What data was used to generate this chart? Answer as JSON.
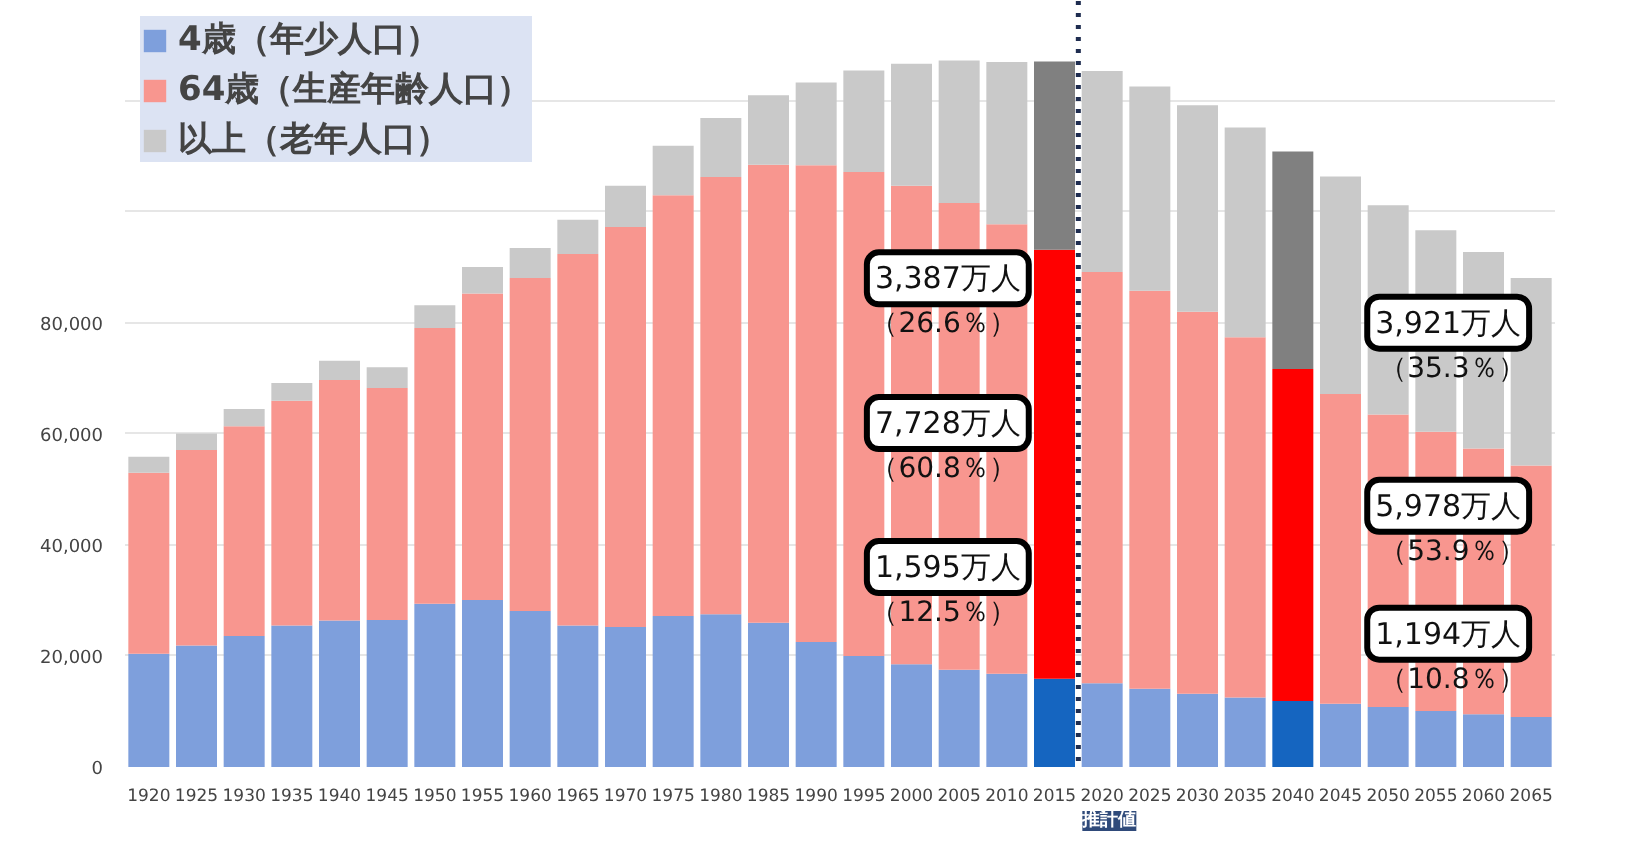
{
  "chart_data": {
    "type": "bar",
    "stacked": true,
    "x": [
      1920,
      1925,
      1930,
      1935,
      1940,
      1945,
      1950,
      1955,
      1960,
      1965,
      1970,
      1975,
      1980,
      1985,
      1990,
      1995,
      2000,
      2005,
      2010,
      2015,
      2020,
      2025,
      2030,
      2035,
      2040,
      2045,
      2050,
      2055,
      2060,
      2065
    ],
    "series": [
      {
        "name": "4歳（年少人口）",
        "colors": [
          "#7e9fdc",
          "#7e9fdc",
          "#7e9fdc",
          "#7e9fdc",
          "#7e9fdc",
          "#7e9fdc",
          "#7e9fdc",
          "#7e9fdc",
          "#7e9fdc",
          "#7e9fdc",
          "#7e9fdc",
          "#7e9fdc",
          "#7e9fdc",
          "#7e9fdc",
          "#7e9fdc",
          "#7e9fdc",
          "#7e9fdc",
          "#7e9fdc",
          "#7e9fdc",
          "#1565c0",
          "#7e9fdc",
          "#7e9fdc",
          "#7e9fdc",
          "#7e9fdc",
          "#1565c0",
          "#7e9fdc",
          "#7e9fdc",
          "#7e9fdc",
          "#7e9fdc",
          "#7e9fdc"
        ],
        "values": [
          20400,
          21900,
          23600,
          25500,
          26400,
          26500,
          29400,
          30100,
          28100,
          25500,
          25200,
          27200,
          27500,
          26000,
          22500,
          20000,
          18500,
          17500,
          16800,
          15900,
          15100,
          14100,
          13200,
          12500,
          11900,
          11400,
          10800,
          10100,
          9500,
          9000
        ]
      },
      {
        "name": "64歳（生産年齢人口）",
        "colors": [
          "#f8968f",
          "#f8968f",
          "#f8968f",
          "#f8968f",
          "#f8968f",
          "#f8968f",
          "#f8968f",
          "#f8968f",
          "#f8968f",
          "#f8968f",
          "#f8968f",
          "#f8968f",
          "#f8968f",
          "#f8968f",
          "#f8968f",
          "#f8968f",
          "#f8968f",
          "#f8968f",
          "#f8968f",
          "#ff0000",
          "#f8968f",
          "#f8968f",
          "#f8968f",
          "#f8968f",
          "#ff0000",
          "#f8968f",
          "#f8968f",
          "#f8968f",
          "#f8968f",
          "#f8968f"
        ],
        "values": [
          32600,
          35200,
          37800,
          40500,
          43300,
          41800,
          49700,
          55200,
          60000,
          66900,
          72100,
          75800,
          78800,
          82500,
          85900,
          87200,
          86200,
          84100,
          81000,
          77300,
          74100,
          71700,
          68800,
          64900,
          59800,
          55800,
          52700,
          50300,
          47900,
          45300
        ]
      },
      {
        "name": "以上（老年人口）",
        "colors": [
          "#c9c9c9",
          "#c9c9c9",
          "#c9c9c9",
          "#c9c9c9",
          "#c9c9c9",
          "#c9c9c9",
          "#c9c9c9",
          "#c9c9c9",
          "#c9c9c9",
          "#c9c9c9",
          "#c9c9c9",
          "#c9c9c9",
          "#c9c9c9",
          "#c9c9c9",
          "#c9c9c9",
          "#c9c9c9",
          "#c9c9c9",
          "#c9c9c9",
          "#c9c9c9",
          "#808080",
          "#c9c9c9",
          "#c9c9c9",
          "#c9c9c9",
          "#c9c9c9",
          "#808080",
          "#c9c9c9",
          "#c9c9c9",
          "#c9c9c9",
          "#c9c9c9",
          "#c9c9c9"
        ],
        "values": [
          2900,
          3000,
          3100,
          3200,
          3500,
          3700,
          4100,
          4800,
          5400,
          6200,
          7400,
          8900,
          10600,
          12500,
          14900,
          18300,
          22000,
          25700,
          29200,
          33900,
          36200,
          36800,
          37200,
          37800,
          39200,
          39200,
          37700,
          36300,
          35400,
          33800
        ]
      }
    ],
    "xlim": [
      1917.5,
      2067.5
    ],
    "xticks": [
      1920,
      1925,
      1930,
      1935,
      1940,
      1945,
      1950,
      1955,
      1960,
      1965,
      1970,
      1975,
      1980,
      1985,
      1990,
      1995,
      2000,
      2005,
      2010,
      2015,
      2020,
      2025,
      2030,
      2035,
      2040,
      2045,
      2050,
      2055,
      2060,
      2065
    ],
    "ylim": [
      0,
      138000
    ],
    "yticks": [
      0,
      {
        "value": 20000,
        "label": "20,000"
      },
      {
        "value": 40000,
        "label": "40,000"
      },
      {
        "value": 60000,
        "label": "60,000"
      },
      {
        "value": 80000,
        "label": "80,000"
      },
      {
        "value": 100000,
        "label": null
      },
      {
        "value": 120000,
        "label": null
      }
    ],
    "grid": "y",
    "legend": "top left",
    "ref_lines": [
      {
        "axis": "x",
        "value": 2017.5,
        "color": "#1f2d50",
        "line_style": "dotted"
      }
    ],
    "annotations": [
      "3,387万人",
      "（26.6％）",
      "7,728万人",
      "（60.8％）",
      "1,595万人",
      "（12.5％）",
      "3,921万人",
      "（35.3％）",
      "5,978万人",
      "（53.9％）",
      "1,194万人",
      "（10.8％）",
      "推計値"
    ]
  }
}
